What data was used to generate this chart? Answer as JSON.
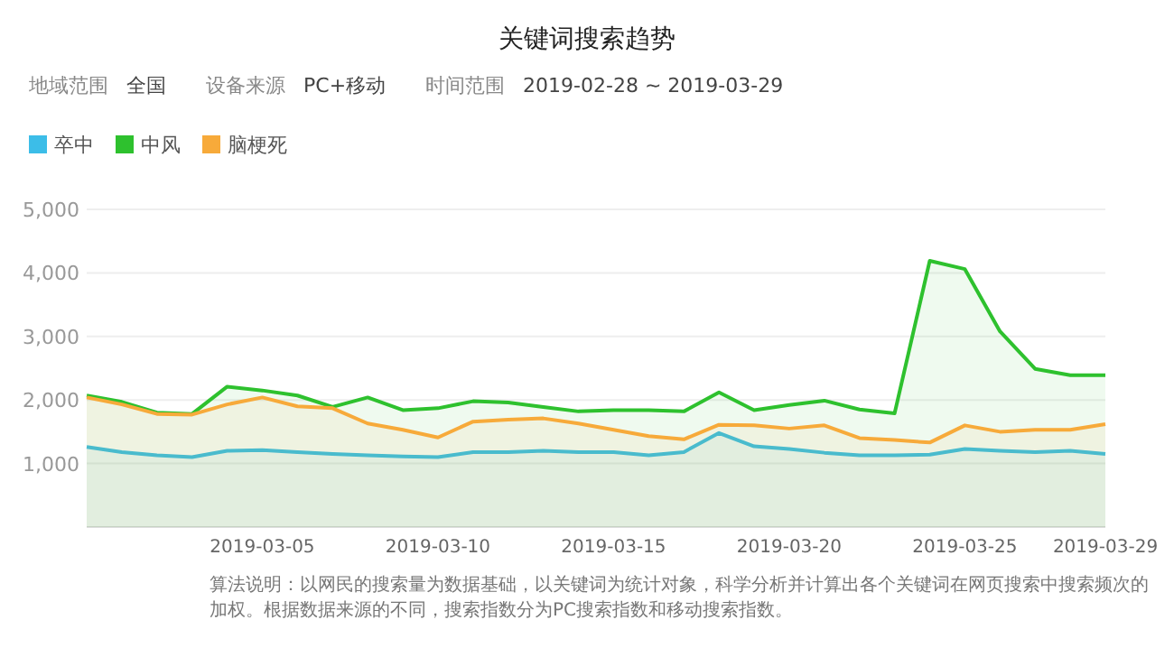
{
  "chart_data": {
    "type": "area",
    "title": "关键词搜索趋势",
    "annotations": [
      "地域范围",
      "全国",
      "设备来源",
      "PC+移动",
      "时间范围",
      "2019-02-28 ~ 2019-03-29",
      "算法说明：以网民的搜索量为数据基础，以关键词为统计对象，科学分析并计算出各个关键词在网页搜索中搜索频次的加权。根据数据来源的不同，搜索指数分为PC搜索指数和移动搜索指数。"
    ],
    "x": [
      "2019-02-28",
      "2019-03-01",
      "2019-03-02",
      "2019-03-03",
      "2019-03-04",
      "2019-03-05",
      "2019-03-06",
      "2019-03-07",
      "2019-03-08",
      "2019-03-09",
      "2019-03-10",
      "2019-03-11",
      "2019-03-12",
      "2019-03-13",
      "2019-03-14",
      "2019-03-15",
      "2019-03-16",
      "2019-03-17",
      "2019-03-18",
      "2019-03-19",
      "2019-03-20",
      "2019-03-21",
      "2019-03-22",
      "2019-03-23",
      "2019-03-24",
      "2019-03-25",
      "2019-03-26",
      "2019-03-27",
      "2019-03-28",
      "2019-03-29"
    ],
    "series": [
      {
        "name": "卒中",
        "color": "#3cbde8",
        "values": [
          1260,
          1180,
          1130,
          1100,
          1200,
          1210,
          1180,
          1150,
          1130,
          1110,
          1100,
          1180,
          1180,
          1200,
          1180,
          1180,
          1130,
          1180,
          1480,
          1270,
          1230,
          1170,
          1130,
          1130,
          1140,
          1230,
          1200,
          1180,
          1200,
          1150
        ]
      },
      {
        "name": "中风",
        "color": "#2ec12e",
        "values": [
          2070,
          1970,
          1800,
          1780,
          2210,
          2150,
          2070,
          1890,
          2040,
          1840,
          1870,
          1980,
          1960,
          1890,
          1820,
          1840,
          1840,
          1820,
          2120,
          1840,
          1920,
          1990,
          1850,
          1790,
          4190,
          4060,
          3080,
          2490,
          2390,
          2390
        ]
      },
      {
        "name": "脑梗死",
        "color": "#f7aa3a",
        "values": [
          2040,
          1930,
          1780,
          1770,
          1930,
          2040,
          1900,
          1870,
          1630,
          1530,
          1410,
          1660,
          1690,
          1710,
          1630,
          1530,
          1430,
          1380,
          1610,
          1600,
          1550,
          1600,
          1400,
          1370,
          1330,
          1600,
          1500,
          1530,
          1530,
          1620
        ]
      }
    ],
    "xlim": [
      "2019-02-28",
      "2019-03-29"
    ],
    "xticks": [
      "2019-03-05",
      "2019-03-10",
      "2019-03-15",
      "2019-03-20",
      "2019-03-25",
      "2019-03-29"
    ],
    "ylim": [
      0,
      5000
    ],
    "yticks": [
      {
        "value": 1000,
        "label": "1,000"
      },
      {
        "value": 2000,
        "label": "2,000"
      },
      {
        "value": 3000,
        "label": "3,000"
      },
      {
        "value": 4000,
        "label": "4,000"
      },
      {
        "value": 5000,
        "label": "5,000"
      }
    ],
    "grid": "y",
    "legend": "top left",
    "marker": "none",
    "line_style": "solid"
  }
}
